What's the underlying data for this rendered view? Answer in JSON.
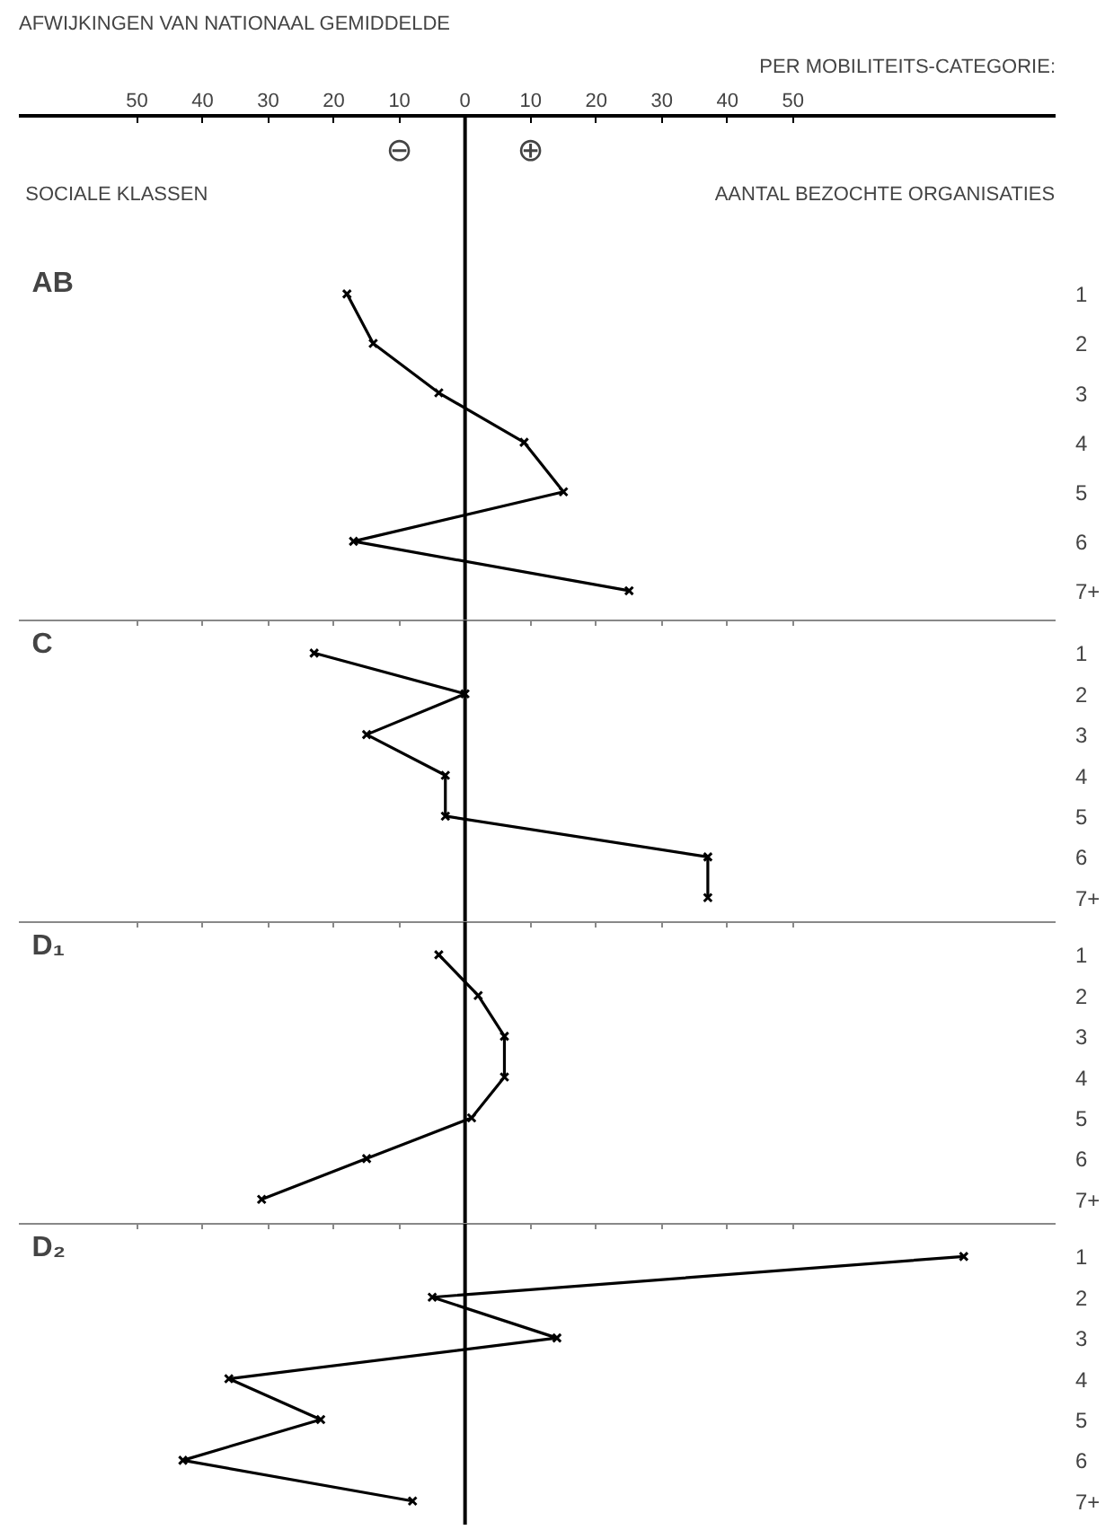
{
  "chart_data": [
    {
      "type": "line",
      "orientation": "horizontal",
      "title": "AB",
      "xlabel": "AFWIJKINGEN VAN NATIONAAL GEMIDDELDE",
      "subtitle": "PER MOBILITEITS-CATEGORIE:",
      "ylabel": "AANTAL BEZOCHTE ORGANISATIES",
      "annotations": [
        "SOCIALE KLASSEN",
        "⊖",
        "⊕"
      ],
      "categories": [
        "1",
        "2",
        "3",
        "4",
        "5",
        "6",
        "7+"
      ],
      "values": [
        -18,
        -14,
        -4,
        9,
        15,
        -17,
        25
      ],
      "color": "#000000",
      "marker": "cross",
      "line_style": "solid",
      "grid": false,
      "xlim": [
        -68,
        90
      ],
      "xticks": [
        {
          "value": -50,
          "label": "50"
        },
        {
          "value": -40,
          "label": "40"
        },
        {
          "value": -30,
          "label": "30"
        },
        {
          "value": -20,
          "label": "20"
        },
        {
          "value": -10,
          "label": "10"
        },
        0,
        10,
        20,
        30,
        40,
        50
      ],
      "ref_lines": [
        {
          "axis": "x",
          "value": 0,
          "color": "#000000"
        }
      ]
    },
    {
      "type": "line",
      "orientation": "horizontal",
      "title": "C",
      "categories": [
        "1",
        "2",
        "3",
        "4",
        "5",
        "6",
        "7+"
      ],
      "values": [
        -23,
        0,
        -15,
        -3,
        -3,
        37,
        37
      ],
      "color": "#000000",
      "marker": "cross",
      "line_style": "solid",
      "grid": false,
      "xlim": [
        -68,
        90
      ],
      "xticks": [
        {
          "value": -50,
          "label": null
        },
        {
          "value": -40,
          "label": null
        },
        {
          "value": -30,
          "label": null
        },
        {
          "value": -20,
          "label": null
        },
        {
          "value": -10,
          "label": null
        },
        {
          "value": 0,
          "label": null
        },
        {
          "value": 10,
          "label": null
        },
        {
          "value": 20,
          "label": null
        },
        {
          "value": 30,
          "label": null
        },
        {
          "value": 40,
          "label": null
        },
        {
          "value": 50,
          "label": null
        }
      ],
      "tick_labels": "y",
      "ref_lines": [
        {
          "axis": "x",
          "value": 0,
          "color": "#000000"
        }
      ]
    },
    {
      "type": "line",
      "orientation": "horizontal",
      "title": "D₁",
      "categories": [
        "1",
        "2",
        "3",
        "4",
        "5",
        "6",
        "7+"
      ],
      "values": [
        -4,
        2,
        6,
        6,
        1,
        -15,
        -31
      ],
      "color": "#000000",
      "marker": "cross",
      "line_style": "solid",
      "grid": false,
      "xlim": [
        -68,
        90
      ],
      "xticks": [
        {
          "value": -50,
          "label": null
        },
        {
          "value": -40,
          "label": null
        },
        {
          "value": -30,
          "label": null
        },
        {
          "value": -20,
          "label": null
        },
        {
          "value": -10,
          "label": null
        },
        {
          "value": 0,
          "label": null
        },
        {
          "value": 10,
          "label": null
        },
        {
          "value": 20,
          "label": null
        },
        {
          "value": 30,
          "label": null
        },
        {
          "value": 40,
          "label": null
        },
        {
          "value": 50,
          "label": null
        }
      ],
      "tick_labels": "y",
      "ref_lines": [
        {
          "axis": "x",
          "value": 0,
          "color": "#000000"
        }
      ]
    },
    {
      "type": "line",
      "orientation": "horizontal",
      "title": "D₂",
      "categories": [
        "1",
        "2",
        "3",
        "4",
        "5",
        "6",
        "7+"
      ],
      "values": [
        76,
        -5,
        14,
        -36,
        -22,
        -43,
        -8
      ],
      "color": "#000000",
      "marker": "cross",
      "line_style": "solid",
      "grid": false,
      "xlim": [
        -68,
        90
      ],
      "xticks": [
        {
          "value": -50,
          "label": null
        },
        {
          "value": -40,
          "label": null
        },
        {
          "value": -30,
          "label": null
        },
        {
          "value": -20,
          "label": null
        },
        {
          "value": -10,
          "label": null
        },
        {
          "value": 0,
          "label": null
        },
        {
          "value": 10,
          "label": null
        },
        {
          "value": 20,
          "label": null
        },
        {
          "value": 30,
          "label": null
        },
        {
          "value": 40,
          "label": null
        },
        {
          "value": 50,
          "label": null
        }
      ],
      "tick_labels": "y",
      "ref_lines": [
        {
          "axis": "x",
          "value": 0,
          "color": "#000000"
        }
      ]
    }
  ]
}
